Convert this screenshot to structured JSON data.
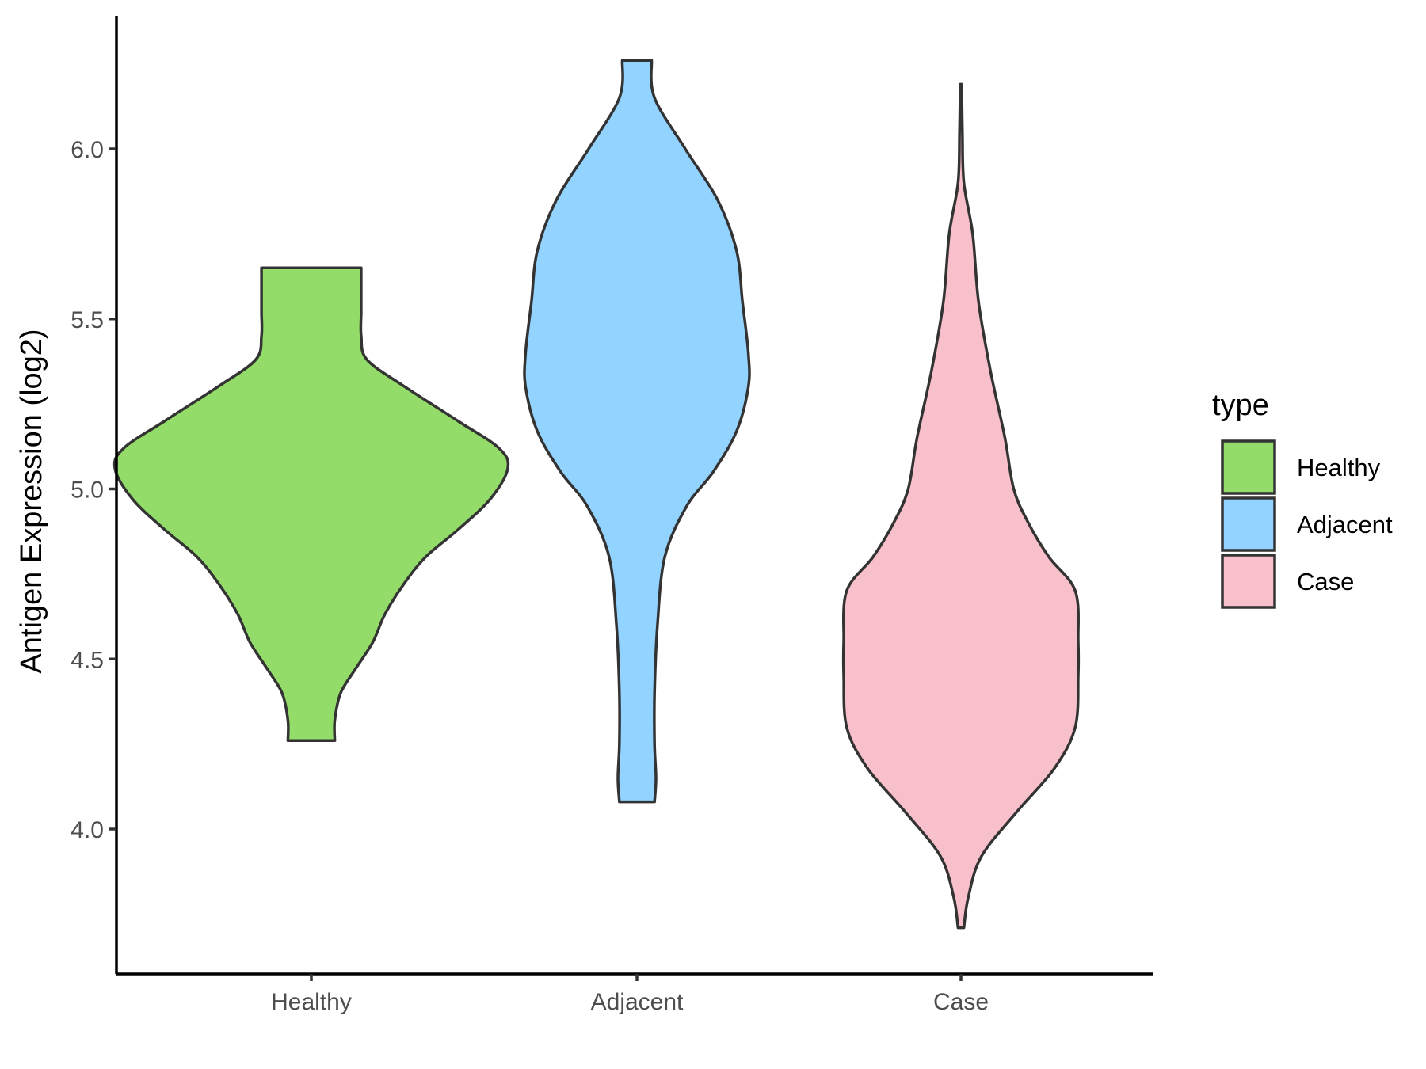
{
  "chart_data": {
    "type": "violin",
    "categories": [
      "Healthy",
      "Adjacent",
      "Case"
    ],
    "ylabel": "Antigen Expression (log2)",
    "xlabel": "",
    "ylim": [
      3.62,
      6.4
    ],
    "yticks": [
      4.0,
      4.5,
      5.0,
      5.5,
      6.0
    ],
    "ytick_labels": [
      "4.0",
      "4.5",
      "5.0",
      "5.5",
      "6.0"
    ],
    "legend": {
      "title": "type",
      "position": "right",
      "items": [
        {
          "label": "Healthy",
          "color": "#93dc6a"
        },
        {
          "label": "Adjacent",
          "color": "#93d3ff"
        },
        {
          "label": "Case",
          "color": "#f8c0cb"
        }
      ]
    },
    "series": [
      {
        "name": "Healthy",
        "color": "#93dc6a",
        "min": 4.26,
        "max": 5.65,
        "profile": [
          [
            4.26,
            0.16
          ],
          [
            4.32,
            0.16
          ],
          [
            4.4,
            0.2
          ],
          [
            4.47,
            0.3
          ],
          [
            4.55,
            0.42
          ],
          [
            4.63,
            0.5
          ],
          [
            4.72,
            0.63
          ],
          [
            4.8,
            0.78
          ],
          [
            4.88,
            1.0
          ],
          [
            4.97,
            1.22
          ],
          [
            5.06,
            1.34
          ],
          [
            5.12,
            1.28
          ],
          [
            5.2,
            1.0
          ],
          [
            5.3,
            0.64
          ],
          [
            5.38,
            0.38
          ],
          [
            5.45,
            0.34
          ],
          [
            5.52,
            0.34
          ],
          [
            5.59,
            0.34
          ],
          [
            5.65,
            0.34
          ]
        ]
      },
      {
        "name": "Adjacent",
        "color": "#93d3ff",
        "min": 4.08,
        "max": 6.26,
        "profile": [
          [
            4.08,
            0.12
          ],
          [
            4.15,
            0.13
          ],
          [
            4.25,
            0.12
          ],
          [
            4.4,
            0.12
          ],
          [
            4.6,
            0.14
          ],
          [
            4.8,
            0.19
          ],
          [
            4.95,
            0.34
          ],
          [
            5.05,
            0.52
          ],
          [
            5.17,
            0.68
          ],
          [
            5.3,
            0.76
          ],
          [
            5.4,
            0.76
          ],
          [
            5.55,
            0.72
          ],
          [
            5.7,
            0.68
          ],
          [
            5.85,
            0.55
          ],
          [
            6.0,
            0.33
          ],
          [
            6.15,
            0.12
          ],
          [
            6.26,
            0.1
          ]
        ]
      },
      {
        "name": "Case",
        "color": "#f8c0cb",
        "min": 3.71,
        "max": 6.19,
        "profile": [
          [
            3.71,
            0.02
          ],
          [
            3.8,
            0.05
          ],
          [
            3.92,
            0.14
          ],
          [
            4.05,
            0.38
          ],
          [
            4.18,
            0.64
          ],
          [
            4.3,
            0.78
          ],
          [
            4.45,
            0.8
          ],
          [
            4.55,
            0.8
          ],
          [
            4.7,
            0.78
          ],
          [
            4.8,
            0.6
          ],
          [
            4.9,
            0.46
          ],
          [
            5.0,
            0.36
          ],
          [
            5.15,
            0.3
          ],
          [
            5.35,
            0.2
          ],
          [
            5.55,
            0.12
          ],
          [
            5.75,
            0.08
          ],
          [
            5.9,
            0.02
          ],
          [
            6.05,
            0.01
          ],
          [
            6.19,
            0.005
          ]
        ]
      }
    ]
  }
}
